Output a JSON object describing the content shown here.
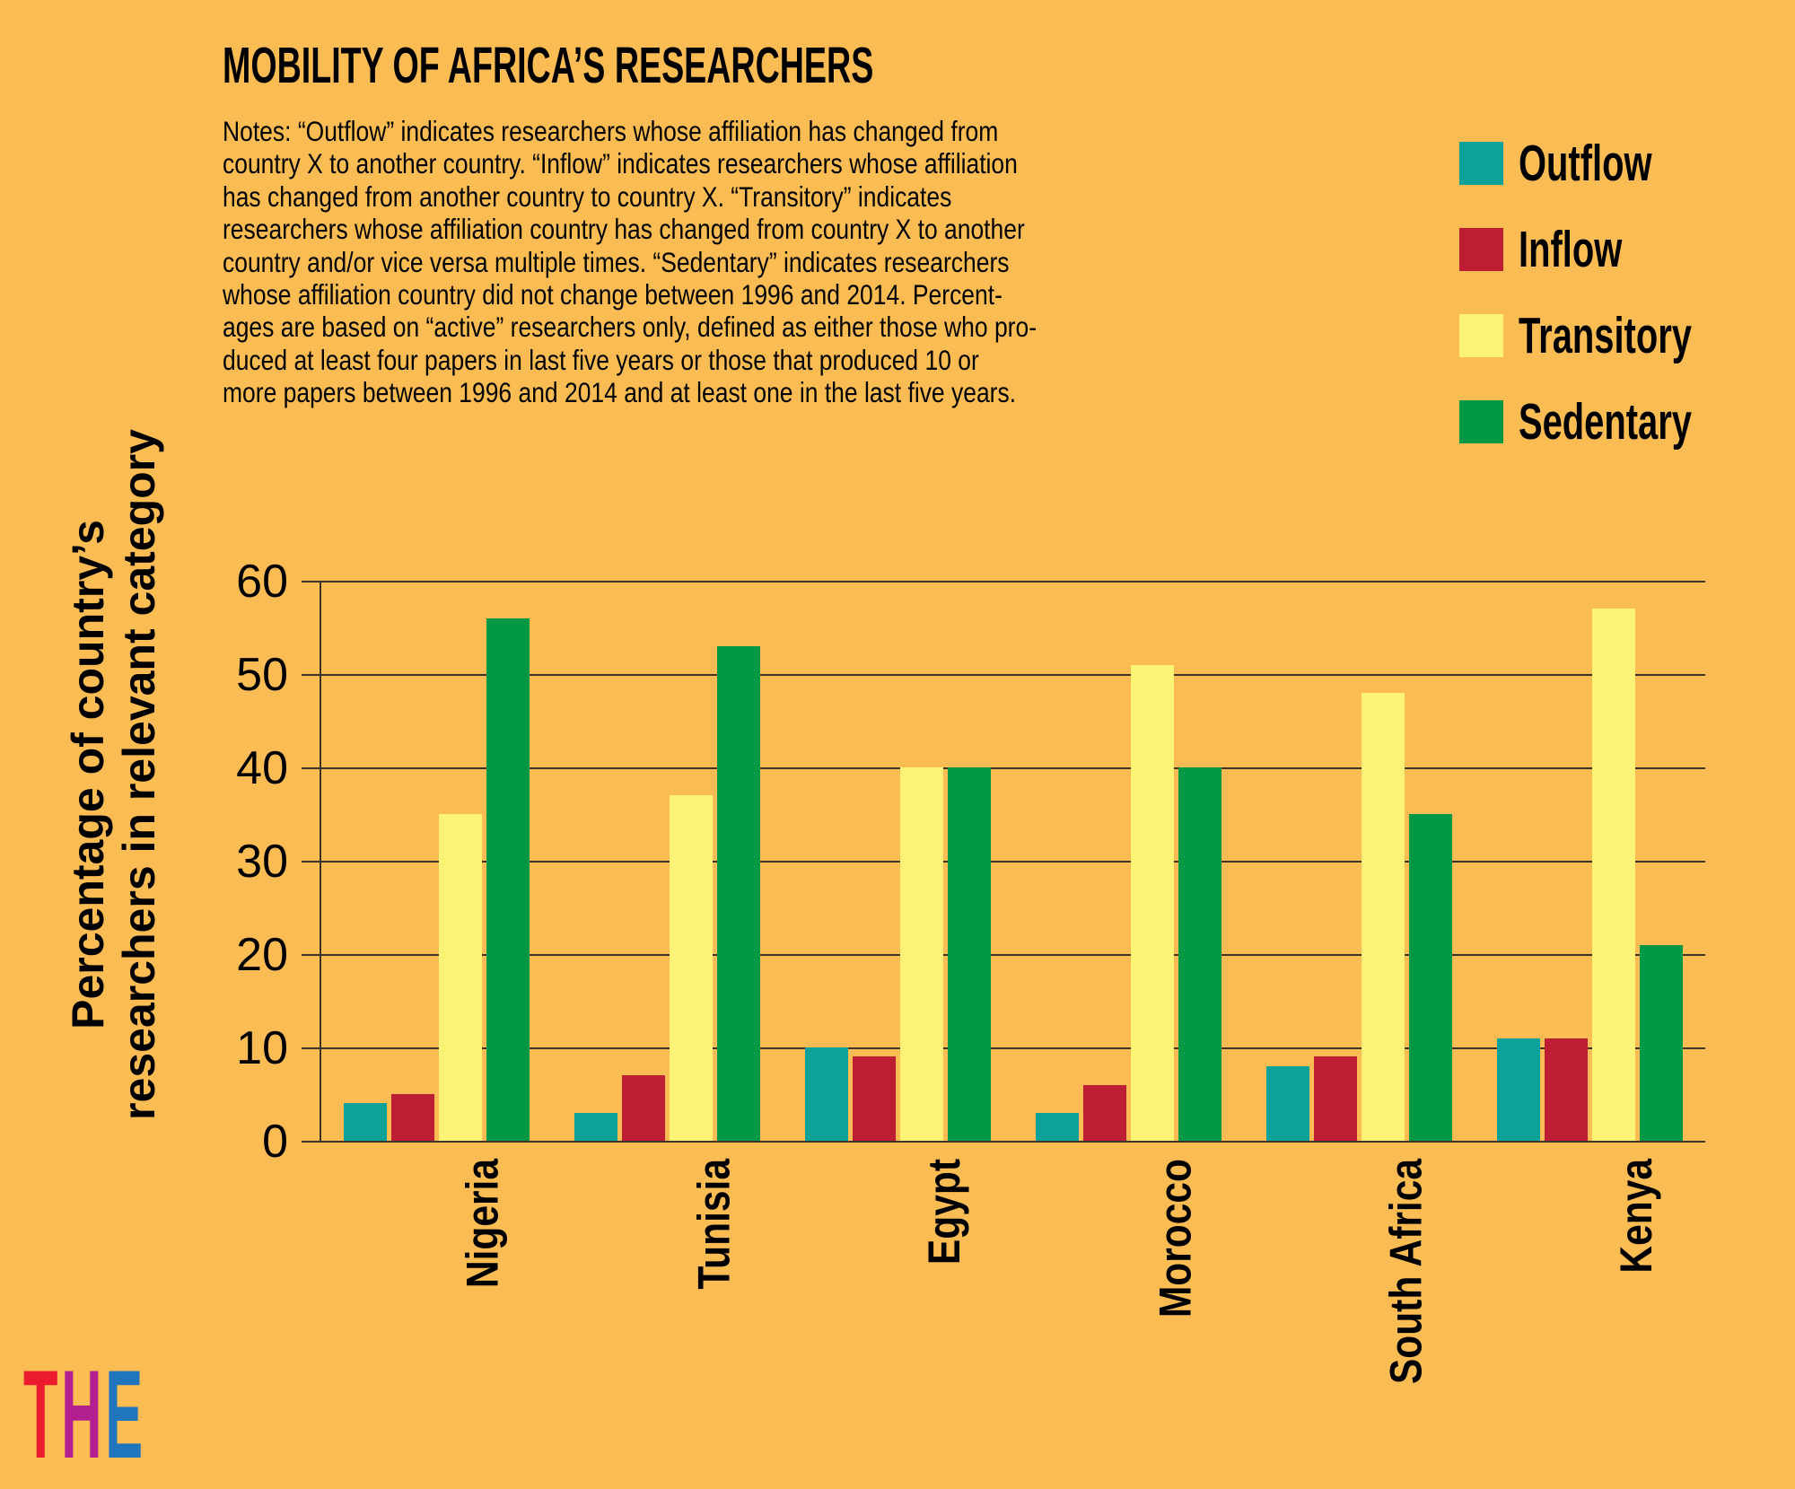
{
  "page": {
    "background": "#FBBD53"
  },
  "header": {
    "title": "MOBILITY OF AFRICA’S RESEARCHERS",
    "notes": "Notes: “Outflow” indicates researchers whose affiliation has changed from\ncountry X to another country. “Inflow” indicates researchers whose affiliation\nhas changed from another country to country X. “Transitory” indicates\nresearchers whose affiliation country has changed from country X to another\ncountry and/or vice versa multiple times. “Sedentary” indicates researchers\nwhose affiliation country did not change between 1996 and 2014. Percent-\nages are based on “active” researchers only, defined as either those who pro-\nduced at least four papers in last five years or those that produced 10 or\nmore papers between 1996 and 2014 and at least one in the last five years."
  },
  "chart_data": {
    "type": "bar",
    "title": "MOBILITY OF AFRICA’S RESEARCHERS",
    "categories": [
      "Nigeria",
      "Tunisia",
      "Egypt",
      "Morocco",
      "South Africa",
      "Kenya"
    ],
    "series": [
      {
        "name": "Outflow",
        "color": "#0CA29A",
        "values": [
          4,
          3,
          10,
          3,
          8,
          11
        ]
      },
      {
        "name": "Inflow",
        "color": "#BE1E33",
        "values": [
          5,
          7,
          9,
          6,
          9,
          11
        ]
      },
      {
        "name": "Transitory",
        "color": "#FDF374",
        "values": [
          35,
          37,
          40,
          51,
          48,
          57
        ]
      },
      {
        "name": "Sedentary",
        "color": "#009845",
        "values": [
          56,
          53,
          40,
          40,
          35,
          21
        ]
      }
    ],
    "xlabel": "",
    "ylabel": "Percentage of country’s\nresearchers in relevant category",
    "yticks": [
      0,
      10,
      20,
      30,
      40,
      50,
      60
    ],
    "ylim": [
      0,
      60
    ],
    "grid": true,
    "legend_position": "top-right"
  },
  "logo": {
    "name": "THE",
    "letters": [
      {
        "char": "T",
        "color": "#EC1B2E"
      },
      {
        "char": "H",
        "color": "#B1208E"
      },
      {
        "char": "E",
        "color": "#1F76BC"
      }
    ]
  },
  "colors": {
    "background": "#FBBD53",
    "gridline": "#3C3426",
    "text": "#000000"
  }
}
